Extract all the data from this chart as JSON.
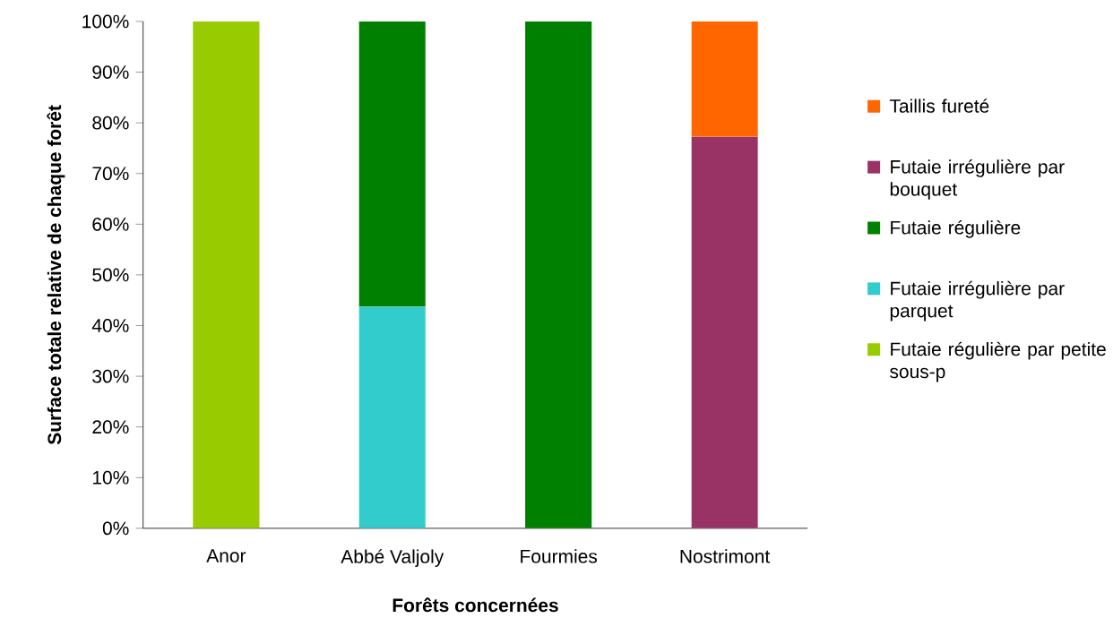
{
  "chart_data": {
    "type": "bar",
    "stacked": true,
    "xlabel": "Forêts concernées",
    "ylabel": "Surface totale relative de chaque forêt",
    "categories": [
      "Anor",
      "Abbé Valjoly",
      "Fourmies",
      "Nostrimont"
    ],
    "ylim": [
      0,
      100
    ],
    "yticks": [
      {
        "value": 0,
        "label": "0%"
      },
      {
        "value": 10,
        "label": "10%"
      },
      {
        "value": 20,
        "label": "20%"
      },
      {
        "value": 30,
        "label": "30%"
      },
      {
        "value": 40,
        "label": "40%"
      },
      {
        "value": 50,
        "label": "50%"
      },
      {
        "value": 60,
        "label": "60%"
      },
      {
        "value": 70,
        "label": "70%"
      },
      {
        "value": 80,
        "label": "80%"
      },
      {
        "value": 90,
        "label": "90%"
      },
      {
        "value": 100,
        "label": "100%"
      }
    ],
    "legend": "right",
    "series": [
      {
        "name": "Futaie régulière par petite sous-p",
        "color": "#99cc00",
        "values": [
          100,
          null,
          null,
          null
        ]
      },
      {
        "name": "Futaie irrégulière par parquet",
        "color": "#33cccc",
        "values": [
          null,
          43.7,
          null,
          null
        ]
      },
      {
        "name": "Futaie régulière",
        "color": "#008000",
        "values": [
          null,
          56.3,
          100,
          null
        ]
      },
      {
        "name": "Futaie irrégulière par bouquet",
        "color": "#993366",
        "values": [
          null,
          null,
          null,
          77.3
        ]
      },
      {
        "name": "Taillis fureté",
        "color": "#ff6600",
        "values": [
          null,
          null,
          null,
          22.7
        ]
      }
    ]
  }
}
